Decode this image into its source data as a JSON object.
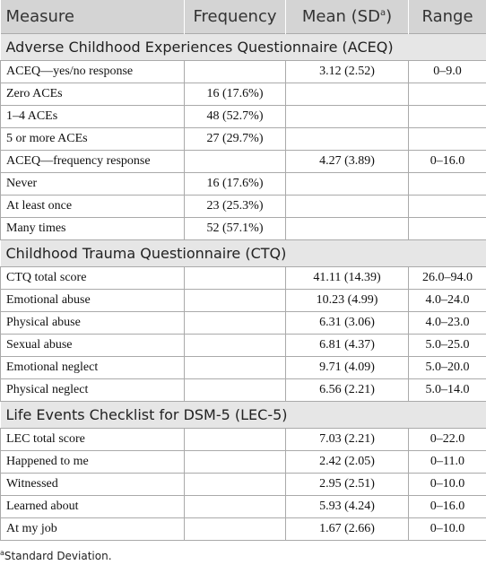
{
  "header": {
    "measure": "Measure",
    "frequency": "Frequency",
    "mean": "Mean (SD",
    "mean_sup": "a",
    "mean_close": ")",
    "range": "Range"
  },
  "sections": [
    {
      "title": "Adverse Childhood Experiences Questionnaire (ACEQ)",
      "rows": [
        [
          "ACEQ—yes/no response",
          null,
          "3.12 (2.52)",
          "0–9.0"
        ],
        [
          "Zero ACEs",
          "16 (17.6%)",
          null,
          null
        ],
        [
          "1–4 ACEs",
          "48 (52.7%)",
          null,
          null
        ],
        [
          "5 or more ACEs",
          "27 (29.7%)",
          null,
          null
        ],
        [
          "ACEQ—frequency response",
          null,
          "4.27 (3.89)",
          "0–16.0"
        ],
        [
          "Never",
          "16 (17.6%)",
          null,
          null
        ],
        [
          "At least once",
          "23 (25.3%)",
          null,
          null
        ],
        [
          "Many times",
          "52 (57.1%)",
          null,
          null
        ]
      ]
    },
    {
      "title": "Childhood Trauma Questionnaire (CTQ)",
      "rows": [
        [
          "CTQ total score",
          null,
          "41.11 (14.39)",
          "26.0–94.0"
        ],
        [
          "Emotional abuse",
          null,
          "10.23 (4.99)",
          "4.0–24.0"
        ],
        [
          "Physical abuse",
          null,
          "6.31 (3.06)",
          "4.0–23.0"
        ],
        [
          "Sexual abuse",
          null,
          "6.81 (4.37)",
          "5.0–25.0"
        ],
        [
          "Emotional neglect",
          null,
          "9.71 (4.09)",
          "5.0–20.0"
        ],
        [
          "Physical neglect",
          null,
          "6.56 (2.21)",
          "5.0–14.0"
        ]
      ]
    },
    {
      "title": "Life Events Checklist for DSM-5 (LEC-5)",
      "rows": [
        [
          "LEC total score",
          null,
          "7.03 (2.21)",
          "0–22.0"
        ],
        [
          "Happened to me",
          null,
          "2.42 (2.05)",
          "0–11.0"
        ],
        [
          "Witnessed",
          null,
          "2.95 (2.51)",
          "0–10.0"
        ],
        [
          "Learned about",
          null,
          "5.93 (4.24)",
          "0–16.0"
        ],
        [
          "At my job",
          null,
          "1.67 (2.66)",
          "0–10.0"
        ]
      ]
    }
  ],
  "footnote": {
    "sup": "a",
    "text": "Standard Deviation."
  }
}
